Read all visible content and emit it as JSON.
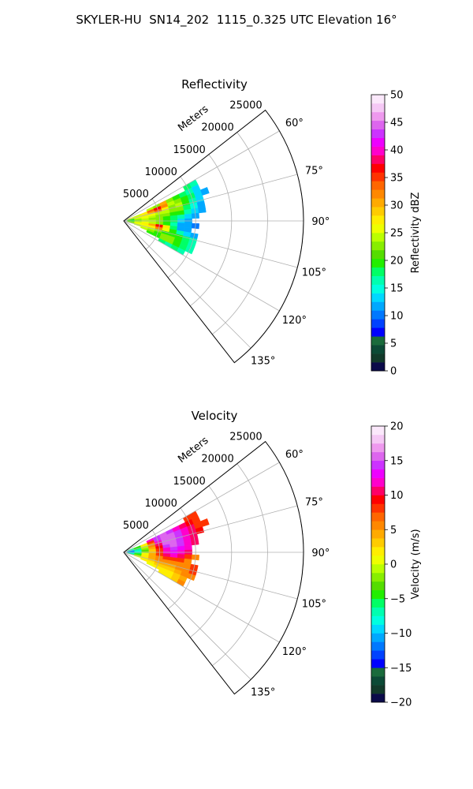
{
  "title": "SKYLER-HU  SN14_202  1115_0.325 UTC Elevation 16°",
  "chart_data": [
    {
      "type": "heatmap",
      "projection": "polar-sector",
      "title": "Reflectivity",
      "range_label": "Meters",
      "range_ticks": [
        5000,
        10000,
        15000,
        20000,
        25000
      ],
      "range_ticklabels": [
        "5000",
        "10000",
        "15000",
        "20000",
        "25000"
      ],
      "rlim": [
        0,
        25000
      ],
      "azimuth_range_deg": [
        52,
        142
      ],
      "azimuth_ticks": [
        60,
        75,
        90,
        105,
        120,
        135
      ],
      "azimuth_ticklabels": [
        "60°",
        "75°",
        "90°",
        "105°",
        "120°",
        "135°"
      ],
      "grid": true,
      "colorbar": {
        "label": "Reflectivity dBZ",
        "min": 0,
        "max": 50,
        "ticks": [
          0,
          5,
          10,
          15,
          20,
          25,
          30,
          35,
          40,
          45,
          50
        ],
        "ticklabels": [
          "0",
          "5",
          "10",
          "15",
          "20",
          "25",
          "30",
          "35",
          "40",
          "45",
          "50"
        ],
        "colors": [
          "#0b0b4a",
          "#123a2a",
          "#0c4a36",
          "#1a6b3c",
          "#0000ff",
          "#0042ff",
          "#0078ff",
          "#00a8ff",
          "#00d8ff",
          "#00ffe0",
          "#00ffb0",
          "#00ff66",
          "#22ee00",
          "#55dd00",
          "#88ee00",
          "#bbff00",
          "#eeff00",
          "#ffee00",
          "#ffcc00",
          "#ffaa00",
          "#ff8800",
          "#ff6600",
          "#ff3300",
          "#ff0000",
          "#ff0066",
          "#ff00cc",
          "#ee00ff",
          "#cc33ff",
          "#dd66ee",
          "#ee99ee",
          "#f5c8f5",
          "#fbe8fb"
        ]
      },
      "field": {
        "azimuth_deg": [
          62,
          66,
          70,
          74,
          78,
          82,
          86,
          90,
          94,
          98,
          102,
          106,
          110,
          114,
          118
        ],
        "range_m": [
          1000,
          2000,
          3000,
          4000,
          5000,
          6000,
          7000,
          8000,
          9000,
          10000,
          11000,
          12000
        ],
        "values": [
          [
            null,
            null,
            null,
            null,
            null,
            null,
            null,
            null,
            null,
            18,
            16,
            null
          ],
          [
            null,
            null,
            null,
            24,
            22,
            30,
            22,
            20,
            18,
            17,
            14,
            null
          ],
          [
            26,
            24,
            28,
            34,
            36,
            32,
            24,
            22,
            20,
            18,
            14,
            12
          ],
          [
            24,
            26,
            27,
            30,
            34,
            28,
            22,
            24,
            20,
            16,
            13,
            null
          ],
          [
            22,
            25,
            26,
            26,
            24,
            24,
            22,
            22,
            18,
            15,
            12,
            null
          ],
          [
            20,
            24,
            25,
            24,
            22,
            22,
            20,
            20,
            16,
            14,
            12,
            null
          ],
          [
            20,
            23,
            24,
            23,
            22,
            20,
            18,
            17,
            14,
            12,
            null,
            null
          ],
          [
            18,
            22,
            24,
            24,
            22,
            20,
            18,
            14,
            12,
            null,
            null,
            null
          ],
          [
            20,
            24,
            26,
            24,
            22,
            20,
            16,
            12,
            12,
            10,
            null,
            null
          ],
          [
            22,
            26,
            28,
            30,
            36,
            28,
            18,
            12,
            12,
            null,
            null,
            null
          ],
          [
            22,
            26,
            26,
            28,
            32,
            26,
            20,
            16,
            14,
            12,
            null,
            null
          ],
          [
            null,
            24,
            26,
            24,
            22,
            20,
            20,
            20,
            18,
            16,
            null,
            null
          ],
          [
            null,
            null,
            24,
            22,
            20,
            22,
            22,
            20,
            18,
            17,
            null,
            null
          ],
          [
            null,
            null,
            null,
            20,
            20,
            22,
            22,
            20,
            18,
            16,
            null,
            null
          ],
          [
            null,
            null,
            null,
            null,
            null,
            18,
            16,
            18,
            16,
            null,
            null,
            null
          ]
        ]
      }
    },
    {
      "type": "heatmap",
      "projection": "polar-sector",
      "title": "Velocity",
      "range_label": "Meters",
      "range_ticks": [
        5000,
        10000,
        15000,
        20000,
        25000
      ],
      "range_ticklabels": [
        "5000",
        "10000",
        "15000",
        "20000",
        "25000"
      ],
      "rlim": [
        0,
        25000
      ],
      "azimuth_range_deg": [
        52,
        142
      ],
      "azimuth_ticks": [
        60,
        75,
        90,
        105,
        120,
        135
      ],
      "azimuth_ticklabels": [
        "60°",
        "75°",
        "90°",
        "105°",
        "120°",
        "135°"
      ],
      "grid": true,
      "colorbar": {
        "label": "Velocity (m/s)",
        "min": -20,
        "max": 20,
        "ticks": [
          -20,
          -15,
          -10,
          -5,
          0,
          5,
          10,
          15,
          20
        ],
        "ticklabels": [
          "−20",
          "−15",
          "−10",
          "−5",
          "0",
          "5",
          "10",
          "15",
          "20"
        ],
        "colors": [
          "#0b0b4a",
          "#123a2a",
          "#0c4a36",
          "#1a6b3c",
          "#0000ff",
          "#0042ff",
          "#0078ff",
          "#00a8ff",
          "#00d8ff",
          "#00ffe0",
          "#00ffb0",
          "#00ff66",
          "#22ee00",
          "#55dd00",
          "#88ee00",
          "#bbff00",
          "#eeff00",
          "#ffee00",
          "#ffcc00",
          "#ffaa00",
          "#ff8800",
          "#ff6600",
          "#ff3300",
          "#ff0000",
          "#ff0066",
          "#ff00cc",
          "#ee00ff",
          "#cc33ff",
          "#dd66ee",
          "#ee99ee",
          "#f5c8f5",
          "#fbe8fb"
        ]
      },
      "field": {
        "azimuth_deg": [
          62,
          66,
          70,
          74,
          78,
          82,
          86,
          90,
          94,
          98,
          102,
          106,
          110,
          114,
          118
        ],
        "range_m": [
          1000,
          2000,
          3000,
          4000,
          5000,
          6000,
          7000,
          8000,
          9000,
          10000,
          11000,
          12000
        ],
        "values": [
          [
            null,
            null,
            null,
            null,
            null,
            null,
            null,
            null,
            null,
            8,
            8,
            null
          ],
          [
            null,
            null,
            null,
            12,
            14,
            16,
            14,
            12,
            10,
            9,
            8,
            null
          ],
          [
            -6,
            -4,
            2,
            8,
            14,
            16,
            16,
            14,
            12,
            10,
            8,
            8
          ],
          [
            -8,
            -5,
            0,
            6,
            12,
            16,
            16,
            14,
            12,
            10,
            9,
            null
          ],
          [
            -10,
            -6,
            -1,
            5,
            10,
            15,
            16,
            14,
            12,
            10,
            null,
            null
          ],
          [
            -11,
            -7,
            -2,
            4,
            9,
            14,
            15,
            14,
            12,
            10,
            null,
            null
          ],
          [
            -12,
            -8,
            -3,
            3,
            8,
            12,
            14,
            13,
            12,
            null,
            null,
            null
          ],
          [
            -12,
            -8,
            -2,
            3,
            8,
            12,
            13,
            12,
            10,
            null,
            null,
            null
          ],
          [
            -10,
            -6,
            0,
            4,
            8,
            10,
            12,
            10,
            8,
            6,
            null,
            null
          ],
          [
            -8,
            -4,
            2,
            4,
            6,
            8,
            8,
            8,
            6,
            null,
            null,
            null
          ],
          [
            -6,
            -2,
            2,
            4,
            5,
            6,
            6,
            6,
            6,
            8,
            null,
            null
          ],
          [
            null,
            0,
            2,
            3,
            4,
            4,
            4,
            5,
            6,
            8,
            null,
            null
          ],
          [
            null,
            null,
            2,
            2,
            3,
            3,
            3,
            4,
            5,
            6,
            null,
            null
          ],
          [
            null,
            null,
            null,
            1,
            2,
            2,
            2,
            3,
            4,
            null,
            null,
            null
          ],
          [
            null,
            null,
            null,
            null,
            null,
            2,
            2,
            3,
            5,
            null,
            null,
            null
          ]
        ]
      }
    }
  ]
}
